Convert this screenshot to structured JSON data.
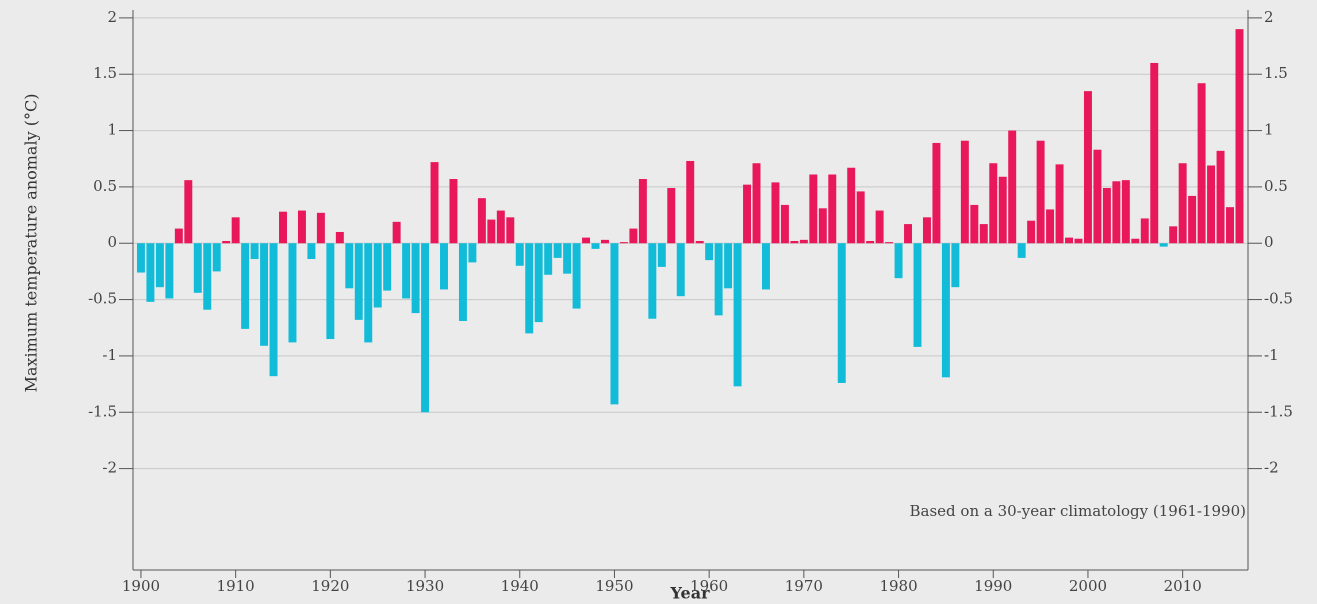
{
  "chart_data": {
    "type": "bar",
    "xlabel": "Year",
    "ylabel": "Maximum temperature anomaly (°C)",
    "annotation": "Based on a 30-year climatology (1961-1990)",
    "x": [
      1900,
      1901,
      1902,
      1903,
      1904,
      1905,
      1906,
      1907,
      1908,
      1909,
      1910,
      1911,
      1912,
      1913,
      1914,
      1915,
      1916,
      1917,
      1918,
      1919,
      1920,
      1921,
      1922,
      1923,
      1924,
      1925,
      1926,
      1927,
      1928,
      1929,
      1930,
      1931,
      1932,
      1933,
      1934,
      1935,
      1936,
      1937,
      1938,
      1939,
      1940,
      1941,
      1942,
      1943,
      1944,
      1945,
      1946,
      1947,
      1948,
      1949,
      1950,
      1951,
      1952,
      1953,
      1954,
      1955,
      1956,
      1957,
      1958,
      1959,
      1960,
      1961,
      1962,
      1963,
      1964,
      1965,
      1966,
      1967,
      1968,
      1969,
      1970,
      1971,
      1972,
      1973,
      1974,
      1975,
      1976,
      1977,
      1978,
      1979,
      1980,
      1981,
      1982,
      1983,
      1984,
      1985,
      1986,
      1987,
      1988,
      1989,
      1990,
      1991,
      1992,
      1993,
      1994,
      1995,
      1996,
      1997,
      1998,
      1999,
      2000,
      2001,
      2002,
      2003,
      2004,
      2005,
      2006,
      2007,
      2008,
      2009,
      2010,
      2011,
      2012,
      2013,
      2014,
      2015,
      2016
    ],
    "values": [
      -0.26,
      -0.52,
      -0.39,
      -0.49,
      0.13,
      0.56,
      -0.44,
      -0.59,
      -0.25,
      0.02,
      0.23,
      -0.76,
      -0.14,
      -0.91,
      -1.18,
      0.28,
      -0.88,
      0.29,
      -0.14,
      0.27,
      -0.85,
      0.1,
      -0.4,
      -0.68,
      -0.88,
      -0.57,
      -0.42,
      0.19,
      -0.49,
      -0.62,
      -1.5,
      0.72,
      -0.41,
      0.57,
      -0.69,
      -0.17,
      0.4,
      0.21,
      0.29,
      0.23,
      -0.2,
      -0.8,
      -0.7,
      -0.28,
      -0.13,
      -0.27,
      -0.58,
      0.05,
      -0.05,
      0.03,
      -1.43,
      0.01,
      0.13,
      0.57,
      -0.67,
      -0.21,
      0.49,
      -0.47,
      0.73,
      0.02,
      -0.15,
      -0.64,
      -0.4,
      -1.27,
      0.52,
      0.71,
      -0.41,
      0.54,
      0.34,
      0.02,
      0.03,
      0.61,
      0.31,
      0.61,
      -1.24,
      0.67,
      0.46,
      0.02,
      0.29,
      0.01,
      -0.31,
      0.17,
      -0.92,
      0.23,
      0.89,
      -1.19,
      -0.39,
      0.91,
      0.34,
      0.17,
      0.71,
      0.59,
      1.0,
      -0.13,
      0.2,
      0.91,
      0.3,
      0.7,
      0.05,
      0.04,
      1.35,
      0.83,
      0.49,
      0.55,
      0.56,
      0.04,
      0.22,
      1.6,
      -0.03,
      0.15,
      0.71,
      0.42,
      1.42,
      0.69,
      0.82,
      0.32,
      1.9
    ],
    "colors": {
      "positive": "#e8185a",
      "negative": "#12bcd9"
    },
    "xlim": [
      1899.16,
      2016.9
    ],
    "xticks": [
      1900,
      1910,
      1920,
      1930,
      1940,
      1950,
      1960,
      1970,
      1980,
      1990,
      2000,
      2010
    ],
    "ylim": [
      -2.9,
      2.07
    ],
    "yticks": [
      2,
      1.5,
      1,
      0.5,
      0,
      -0.5,
      -1,
      -1.5,
      -2
    ],
    "grid": true
  }
}
